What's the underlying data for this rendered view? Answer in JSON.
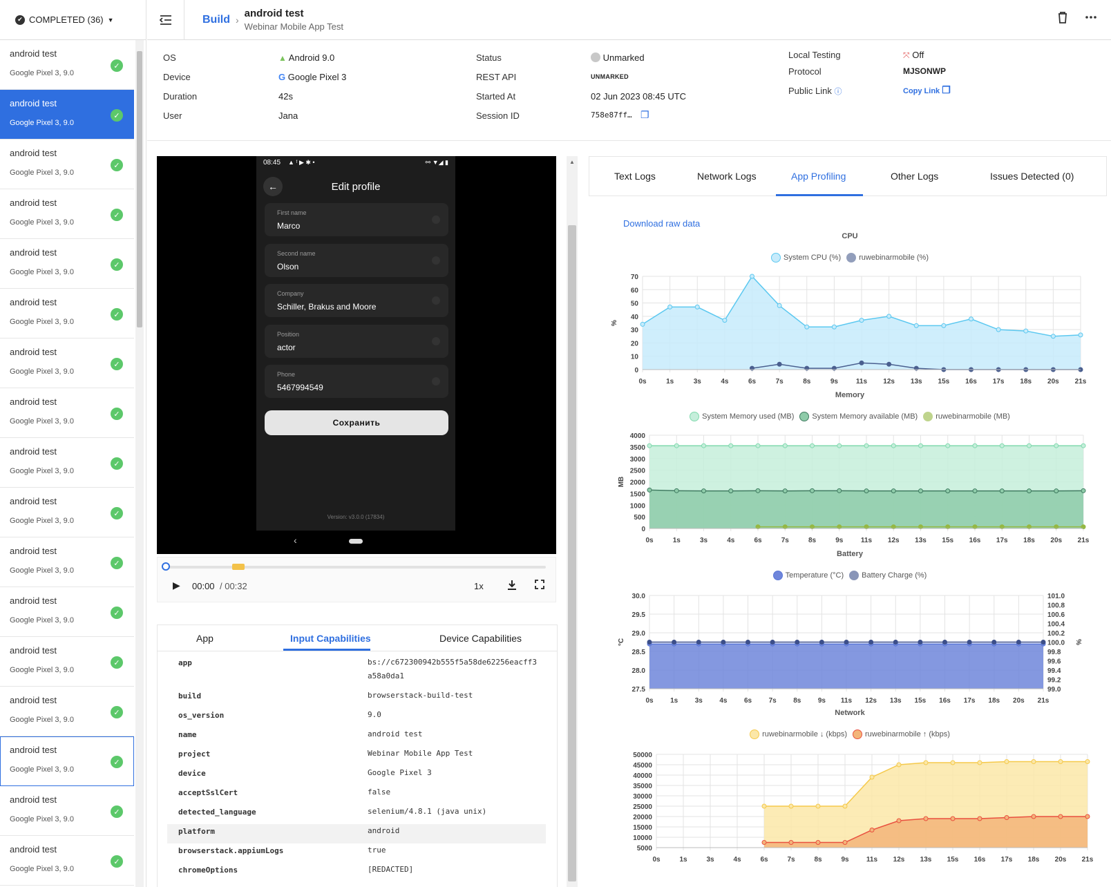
{
  "sidebar": {
    "filter_label": "COMPLETED (36)",
    "sessions": [
      {
        "title": "android test",
        "subtitle": "Google Pixel 3, 9.0"
      },
      {
        "title": "android test",
        "subtitle": "Google Pixel 3, 9.0"
      },
      {
        "title": "android test",
        "subtitle": "Google Pixel 3, 9.0"
      },
      {
        "title": "android test",
        "subtitle": "Google Pixel 3, 9.0"
      },
      {
        "title": "android test",
        "subtitle": "Google Pixel 3, 9.0"
      },
      {
        "title": "android test",
        "subtitle": "Google Pixel 3, 9.0"
      },
      {
        "title": "android test",
        "subtitle": "Google Pixel 3, 9.0"
      },
      {
        "title": "android test",
        "subtitle": "Google Pixel 3, 9.0"
      },
      {
        "title": "android test",
        "subtitle": "Google Pixel 3, 9.0"
      },
      {
        "title": "android test",
        "subtitle": "Google Pixel 3, 9.0"
      },
      {
        "title": "android test",
        "subtitle": "Google Pixel 3, 9.0"
      },
      {
        "title": "android test",
        "subtitle": "Google Pixel 3, 9.0"
      },
      {
        "title": "android test",
        "subtitle": "Google Pixel 3, 9.0"
      },
      {
        "title": "android test",
        "subtitle": "Google Pixel 3, 9.0"
      },
      {
        "title": "android test",
        "subtitle": "Google Pixel 3, 9.0"
      },
      {
        "title": "android test",
        "subtitle": "Google Pixel 3, 9.0"
      },
      {
        "title": "android test",
        "subtitle": "Google Pixel 3, 9.0"
      }
    ]
  },
  "header": {
    "breadcrumb": "Build",
    "title": "android test",
    "subtitle": "Webinar Mobile App Test"
  },
  "info": {
    "os_label": "OS",
    "os_value": "Android 9.0",
    "device_label": "Device",
    "device_value": "Google Pixel 3",
    "duration_label": "Duration",
    "duration_value": "42s",
    "user_label": "User",
    "user_value": "Jana",
    "status_label": "Status",
    "status_value": "Unmarked",
    "rest_label": "REST API",
    "rest_value": "UNMARKED",
    "started_label": "Started At",
    "started_value": "02 Jun 2023 08:45 UTC",
    "session_label": "Session ID",
    "session_value": "758e87ff…",
    "local_label": "Local Testing",
    "local_value": "Off",
    "protocol_label": "Protocol",
    "protocol_value": "MJSONWP",
    "public_label": "Public Link",
    "public_value": "Copy Link"
  },
  "phone": {
    "time": "08:45",
    "screen_title": "Edit profile",
    "fields": [
      {
        "label": "First name",
        "value": "Marco"
      },
      {
        "label": "Second name",
        "value": "Olson"
      },
      {
        "label": "Company",
        "value": "Schiller, Brakus and Moore"
      },
      {
        "label": "Position",
        "value": "actor"
      },
      {
        "label": "Phone",
        "value": "5467994549"
      }
    ],
    "save_label": "Сохранить",
    "version": "Version: v3.0.0 (17834)"
  },
  "player": {
    "current": "00:00",
    "total": "/ 00:32",
    "speed": "1x"
  },
  "caps": {
    "tabs": [
      "App",
      "Input Capabilities",
      "Device Capabilities"
    ],
    "rows": [
      {
        "k": "app",
        "v": "bs://c672300942b555f5a58de62256eacff3a58a0da1"
      },
      {
        "k": "build",
        "v": "browserstack-build-test"
      },
      {
        "k": "os_version",
        "v": "9.0"
      },
      {
        "k": "name",
        "v": "android test"
      },
      {
        "k": "project",
        "v": "Webinar Mobile App Test"
      },
      {
        "k": "device",
        "v": "Google Pixel 3"
      },
      {
        "k": "acceptSslCert",
        "v": "false"
      },
      {
        "k": "detected_language",
        "v": "selenium/4.8.1 (java unix)"
      },
      {
        "k": "platform",
        "v": "android"
      },
      {
        "k": "browserstack.appiumLogs",
        "v": "true"
      },
      {
        "k": "chromeOptions",
        "v": "[REDACTED]"
      }
    ]
  },
  "logs": {
    "tabs": [
      "Text Logs",
      "Network Logs",
      "App Profiling",
      "Other Logs",
      "Issues Detected (0)"
    ],
    "download": "Download raw data"
  },
  "chart_data": [
    {
      "type": "area",
      "title": "CPU",
      "ylabel": "%",
      "x": [
        "0s",
        "1s",
        "3s",
        "4s",
        "6s",
        "7s",
        "8s",
        "9s",
        "11s",
        "12s",
        "13s",
        "15s",
        "16s",
        "17s",
        "18s",
        "20s",
        "21s"
      ],
      "ylim": [
        0,
        70
      ],
      "yticks": [
        0,
        10,
        20,
        30,
        40,
        50,
        60,
        70
      ],
      "series": [
        {
          "name": "System CPU (%)",
          "color": "#5bc8f0",
          "fill": "#c7ebfb",
          "values": [
            34,
            47,
            47,
            37,
            70,
            48,
            32,
            32,
            37,
            40,
            33,
            33,
            38,
            30,
            29,
            25,
            26
          ]
        },
        {
          "name": "ruwebinarmobile (%)",
          "color": "#4a5f8f",
          "fill": "none",
          "values": [
            null,
            null,
            null,
            null,
            1,
            4,
            1,
            1,
            5,
            4,
            1,
            0,
            0,
            0,
            0,
            0,
            0
          ]
        }
      ]
    },
    {
      "type": "area",
      "title": "Memory",
      "ylabel": "MB",
      "x": [
        "0s",
        "1s",
        "3s",
        "4s",
        "6s",
        "7s",
        "8s",
        "9s",
        "11s",
        "12s",
        "13s",
        "15s",
        "16s",
        "17s",
        "18s",
        "20s",
        "21s"
      ],
      "ylim": [
        0,
        4000
      ],
      "yticks": [
        0,
        500,
        1000,
        1500,
        2000,
        2500,
        3000,
        3500,
        4000
      ],
      "series": [
        {
          "name": "System Memory used (MB)",
          "color": "#7fd9ad",
          "fill": "#c5eedb",
          "values": [
            3550,
            3550,
            3550,
            3550,
            3550,
            3550,
            3550,
            3550,
            3550,
            3550,
            3550,
            3550,
            3550,
            3550,
            3550,
            3550,
            3550
          ]
        },
        {
          "name": "System Memory available (MB)",
          "color": "#3f7a60",
          "fill": "#8ecba9",
          "values": [
            1650,
            1620,
            1610,
            1610,
            1620,
            1610,
            1620,
            1620,
            1610,
            1610,
            1610,
            1610,
            1610,
            1610,
            1610,
            1610,
            1620
          ]
        },
        {
          "name": "ruwebinarmobile (MB)",
          "color": "#95b842",
          "fill": "none",
          "values": [
            null,
            null,
            null,
            null,
            70,
            70,
            70,
            70,
            70,
            70,
            70,
            70,
            70,
            70,
            70,
            70,
            70
          ]
        }
      ]
    },
    {
      "type": "area",
      "title": "Battery",
      "ylabel": "°C",
      "y2label": "%",
      "x": [
        "0s",
        "1s",
        "3s",
        "4s",
        "6s",
        "7s",
        "8s",
        "9s",
        "11s",
        "12s",
        "13s",
        "15s",
        "16s",
        "17s",
        "18s",
        "20s",
        "21s"
      ],
      "ylim": [
        27.5,
        30.0
      ],
      "yticks": [
        27.5,
        28.0,
        28.5,
        29.0,
        29.5,
        30.0
      ],
      "y2lim": [
        99.0,
        101.0
      ],
      "y2ticks": [
        99.0,
        99.2,
        99.4,
        99.6,
        99.8,
        100.0,
        100.2,
        100.4,
        100.6,
        100.8,
        101.0
      ],
      "series": [
        {
          "name": "Temperature (°C)",
          "color": "#5876d8",
          "fill": "#6f86db",
          "values": [
            28.7,
            28.7,
            28.7,
            28.7,
            28.7,
            28.7,
            28.7,
            28.7,
            28.7,
            28.7,
            28.7,
            28.7,
            28.7,
            28.7,
            28.7,
            28.7,
            28.7
          ]
        },
        {
          "name": "Battery Charge (%)",
          "color": "#3c4f8a",
          "fill": "none",
          "axis": "y2",
          "values": [
            100,
            100,
            100,
            100,
            100,
            100,
            100,
            100,
            100,
            100,
            100,
            100,
            100,
            100,
            100,
            100,
            100
          ]
        }
      ]
    },
    {
      "type": "area",
      "title": "Network",
      "x": [
        "0s",
        "1s",
        "3s",
        "4s",
        "6s",
        "7s",
        "8s",
        "9s",
        "11s",
        "12s",
        "13s",
        "15s",
        "16s",
        "17s",
        "18s",
        "20s",
        "21s"
      ],
      "ylim": [
        5000,
        50000
      ],
      "yticks": [
        5000,
        10000,
        15000,
        20000,
        25000,
        30000,
        35000,
        40000,
        45000,
        50000
      ],
      "series": [
        {
          "name": "ruwebinarmobile ↓ (kbps)",
          "color": "#f5c94a",
          "fill": "#fbe7a8",
          "values": [
            null,
            null,
            null,
            null,
            25000,
            25000,
            25000,
            25000,
            39000,
            45000,
            46000,
            46000,
            46000,
            46500,
            46500,
            46500,
            46500
          ]
        },
        {
          "name": "ruwebinarmobile ↑ (kbps)",
          "color": "#e9503f",
          "fill": "#f3b57a",
          "values": [
            null,
            null,
            null,
            null,
            7500,
            7500,
            7500,
            7500,
            13500,
            18000,
            19000,
            19000,
            19000,
            19500,
            20000,
            20000,
            20000
          ]
        }
      ]
    }
  ]
}
